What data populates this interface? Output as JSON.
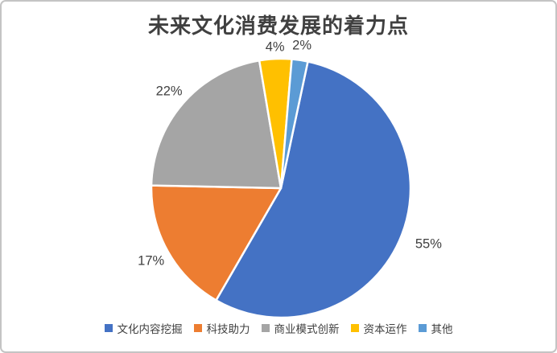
{
  "chart_data": {
    "type": "pie",
    "title": "未来文化消费发展的着力点",
    "legend_position": "bottom",
    "start_angle_deg": 12,
    "background_color": "#ffffff",
    "border_color": "#c4c4c4",
    "title_color": "#404040",
    "label_color": "#404040",
    "slices": [
      {
        "label": "文化内容挖掘",
        "value": 55,
        "pct_label": "55%",
        "color": "#4472C4"
      },
      {
        "label": "科技助力",
        "value": 17,
        "pct_label": "17%",
        "color": "#ED7D31"
      },
      {
        "label": "商业模式创新",
        "value": 22,
        "pct_label": "22%",
        "color": "#A5A5A5"
      },
      {
        "label": "资本运作",
        "value": 4,
        "pct_label": "4%",
        "color": "#FFC000"
      },
      {
        "label": "其他",
        "value": 2,
        "pct_label": "2%",
        "color": "#5B9BD5"
      }
    ]
  }
}
